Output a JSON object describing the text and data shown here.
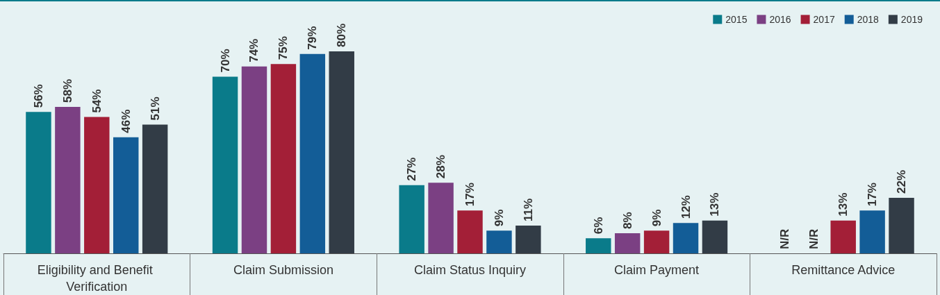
{
  "chart_data": {
    "type": "bar",
    "categories": [
      "Eligibility and Benefit Verification",
      "Claim Submission",
      "Claim Status Inquiry",
      "Claim Payment",
      "Remittance Advice"
    ],
    "series": [
      {
        "name": "2015",
        "color": "#0a7b8a",
        "values": [
          56,
          70,
          27,
          6,
          null
        ],
        "value_labels": [
          "56%",
          "70%",
          "27%",
          "6%",
          "N/R"
        ]
      },
      {
        "name": "2016",
        "color": "#7b4083",
        "values": [
          58,
          74,
          28,
          8,
          null
        ],
        "value_labels": [
          "58%",
          "74%",
          "28%",
          "8%",
          "N/R"
        ]
      },
      {
        "name": "2017",
        "color": "#a31f37",
        "values": [
          54,
          75,
          17,
          9,
          13
        ],
        "value_labels": [
          "54%",
          "75%",
          "17%",
          "9%",
          "13%"
        ]
      },
      {
        "name": "2018",
        "color": "#135d97",
        "values": [
          46,
          79,
          9,
          12,
          17
        ],
        "value_labels": [
          "46%",
          "79%",
          "9%",
          "12%",
          "17%"
        ]
      },
      {
        "name": "2019",
        "color": "#323c46",
        "values": [
          51,
          80,
          11,
          13,
          22
        ],
        "value_labels": [
          "51%",
          "80%",
          "11%",
          "13%",
          "22%"
        ]
      }
    ],
    "legend": "top right"
  }
}
